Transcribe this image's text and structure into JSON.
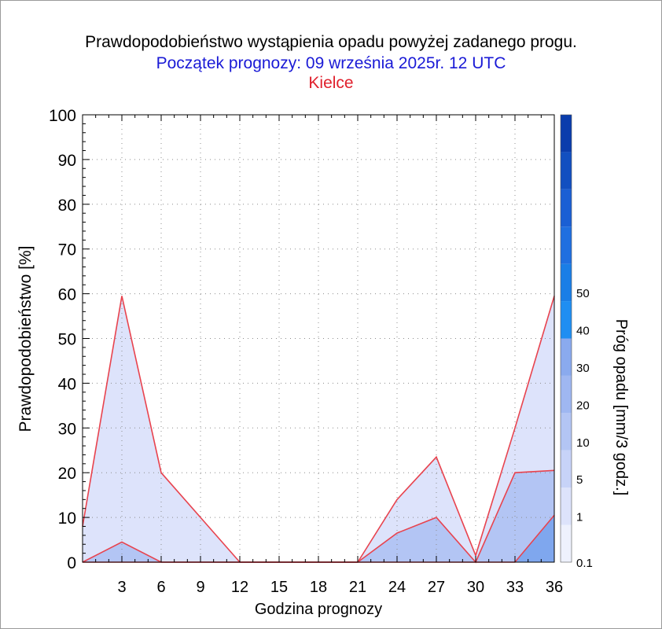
{
  "header": {
    "title": "Prawdopodobieństwo wystąpienia opadu powyżej zadanego progu.",
    "subtitle": "Początek prognozy: 09 września 2025r. 12 UTC",
    "location": "Kielce"
  },
  "colors": {
    "title": "#000000",
    "subtitle": "#1a1ad6",
    "location": "#e0202c",
    "series_line": "#e8434e",
    "grid": "#8c8c8c"
  },
  "chart_data": {
    "type": "area",
    "title": "Prawdopodobieństwo wystąpienia opadu powyżej zadanego progu.",
    "xlabel": "Godzina prognozy",
    "ylabel": "Prawdopodobieństwo [%]",
    "xlim": [
      0,
      36
    ],
    "ylim": [
      0,
      100
    ],
    "x": [
      0,
      3,
      6,
      9,
      12,
      15,
      18,
      21,
      24,
      27,
      30,
      33,
      36
    ],
    "xticks": [
      "3",
      "6",
      "9",
      "12",
      "15",
      "18",
      "21",
      "24",
      "27",
      "30",
      "33",
      "36"
    ],
    "yticks": [
      "0",
      "10",
      "20",
      "30",
      "40",
      "50",
      "60",
      "70",
      "80",
      "90",
      "100"
    ],
    "grid": true,
    "series": [
      {
        "threshold": 0.1,
        "values": [
          8,
          59.5,
          20,
          10,
          0,
          0,
          0,
          0,
          14,
          23.5,
          1.5,
          30,
          59.5
        ],
        "color": "#dde3fb"
      },
      {
        "threshold": 1,
        "values": [
          0,
          4.5,
          0,
          0,
          0,
          0,
          0,
          0,
          6.5,
          10,
          0,
          20,
          20.5
        ],
        "color": "#b3c5f4"
      },
      {
        "threshold": 5,
        "values": [
          0,
          0,
          0,
          0,
          0,
          0,
          0,
          0,
          0,
          0,
          0,
          0,
          10.5
        ],
        "color": "#7fa7ee"
      }
    ],
    "colorbar": {
      "label": "Próg opadu [mm/3 godz.]",
      "tick_labels": [
        "0.1",
        "1",
        "5",
        "10",
        "20",
        "30",
        "40",
        "50"
      ],
      "colors": [
        "#eef1fd",
        "#dde3fb",
        "#c7d3f8",
        "#b3c5f4",
        "#9fb7f1",
        "#8aaaee",
        "#1f8ef2",
        "#1a7ee6",
        "#1f6fe0",
        "#1a5fd4",
        "#124fc0",
        "#0a3cac"
      ]
    }
  }
}
